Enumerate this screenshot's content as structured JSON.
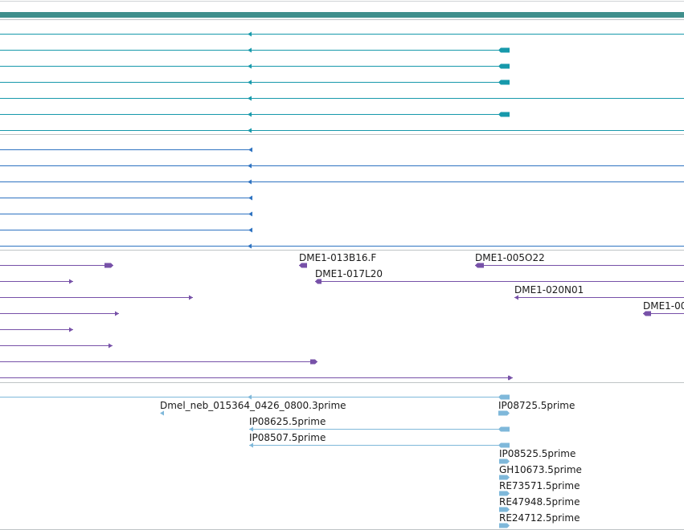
{
  "colors": {
    "background": "#ffffff",
    "separator": "#bfc4c6",
    "top_bar": "#3f8f8c",
    "track1": "#1799ab",
    "track2": "#2e73c1",
    "track3": "#7751a8",
    "track4": "#7fb8da"
  },
  "tracks": [
    {
      "name": "track-1",
      "color_key": "track1",
      "features": [
        {
          "start": 0,
          "end": 851,
          "strand": "-",
          "mid_arrow": 312
        },
        {
          "start": 0,
          "end": 634,
          "strand": "-",
          "mid_arrow": 312,
          "block": [
            620,
            634
          ]
        },
        {
          "start": 0,
          "end": 634,
          "strand": "-",
          "mid_arrow": 312,
          "block": [
            620,
            634
          ]
        },
        {
          "start": 0,
          "end": 634,
          "strand": "-",
          "mid_arrow": 312,
          "block": [
            620,
            634
          ]
        },
        {
          "start": 0,
          "end": 851,
          "strand": "-",
          "mid_arrow": 312
        },
        {
          "start": 0,
          "end": 634,
          "strand": "-",
          "mid_arrow": 312,
          "block": [
            620,
            634
          ]
        },
        {
          "start": 0,
          "end": 851,
          "strand": "-",
          "mid_arrow": 312
        }
      ]
    },
    {
      "name": "track-2",
      "color_key": "track2",
      "features": [
        {
          "start": 0,
          "end": 314,
          "strand": "-",
          "end_arrow": true
        },
        {
          "start": 0,
          "end": 851,
          "strand": "-",
          "mid_arrow": 312
        },
        {
          "start": 0,
          "end": 851,
          "strand": "-",
          "mid_arrow": 312
        },
        {
          "start": 0,
          "end": 314,
          "strand": "-",
          "end_arrow": true
        },
        {
          "start": 0,
          "end": 314,
          "strand": "-",
          "end_arrow": true
        },
        {
          "start": 0,
          "end": 314,
          "strand": "-",
          "end_arrow": true
        },
        {
          "start": 0,
          "end": 851,
          "strand": "-",
          "mid_arrow": 312
        }
      ]
    }
  ],
  "clones": [
    {
      "label": "",
      "start": 0,
      "end": 141,
      "strand": "+",
      "block": [
        130,
        141
      ]
    },
    {
      "label": "DME1-013B16.F",
      "start": 372,
      "end": 382,
      "strand": "-",
      "block": [
        372,
        382
      ]
    },
    {
      "label": "DME1-005O22",
      "start": 591,
      "end": 851,
      "strand": "-",
      "block": [
        591,
        602
      ]
    },
    {
      "label": "",
      "start": 0,
      "end": 91,
      "strand": "+"
    },
    {
      "label": "DME1-017L20",
      "start": 392,
      "end": 851,
      "strand": "-",
      "block": [
        392,
        400
      ]
    },
    {
      "label": "",
      "start": 0,
      "end": 240,
      "strand": "+"
    },
    {
      "label": "DME1-020N01",
      "start": 640,
      "end": 851,
      "strand": "-"
    },
    {
      "label": "",
      "start": 0,
      "end": 148,
      "strand": "+"
    },
    {
      "label": "DME1-00",
      "start": 800,
      "end": 851,
      "strand": "-",
      "block": [
        800,
        810
      ]
    },
    {
      "label": "",
      "start": 0,
      "end": 91,
      "strand": "+"
    },
    {
      "label": "",
      "start": 0,
      "end": 140,
      "strand": "+"
    },
    {
      "label": "",
      "start": 0,
      "end": 395,
      "strand": "+",
      "block": [
        386,
        395
      ]
    },
    {
      "label": "",
      "start": 0,
      "end": 638,
      "strand": "+"
    }
  ],
  "ests": [
    {
      "label": "",
      "start": 0,
      "end": 634,
      "strand": "-",
      "mid_arrow": 312,
      "block": [
        620,
        634
      ]
    },
    {
      "label": "Dmel_neb_015364_0426_0800.3prime",
      "start": 199,
      "end": 204,
      "strand": "-"
    },
    {
      "label": "IP08725.5prime",
      "start": 620,
      "end": 634,
      "strand": "+",
      "block": [
        620,
        634
      ]
    },
    {
      "label": "IP08625.5prime",
      "start": 310,
      "end": 634,
      "strand": "-",
      "block": [
        620,
        634
      ]
    },
    {
      "label": "IP08507.5prime",
      "start": 310,
      "end": 634,
      "strand": "-",
      "block": [
        620,
        634
      ]
    },
    {
      "label": "IP08525.5prime",
      "start": 621,
      "end": 634,
      "strand": "+"
    },
    {
      "label": "GH10673.5prime",
      "start": 621,
      "end": 634,
      "strand": "+"
    },
    {
      "label": "RE73571.5prime",
      "start": 621,
      "end": 634,
      "strand": "+"
    },
    {
      "label": "RE47948.5prime",
      "start": 621,
      "end": 634,
      "strand": "+"
    },
    {
      "label": "RE24712.5prime",
      "start": 621,
      "end": 634,
      "strand": "+"
    }
  ]
}
